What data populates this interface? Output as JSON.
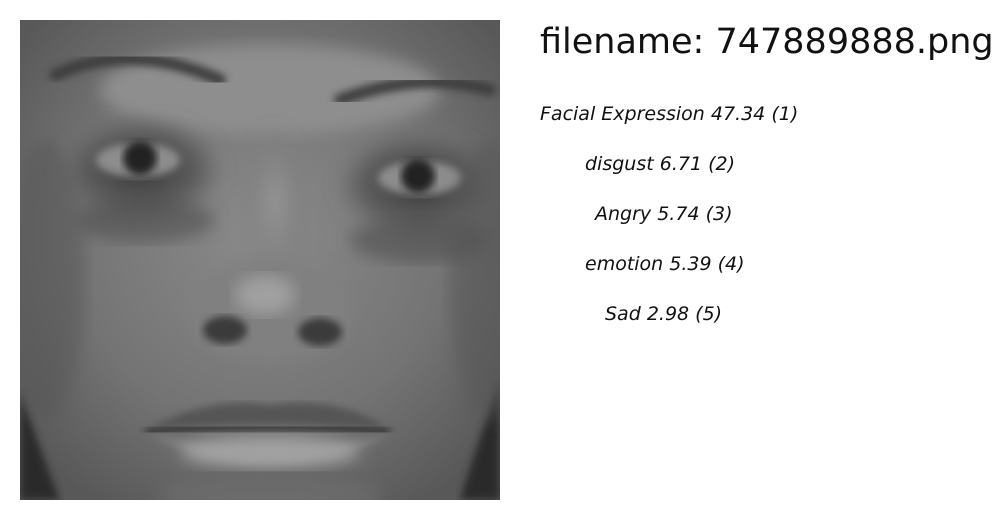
{
  "image": {
    "alt": "grayscale face photo"
  },
  "header": {
    "filename": "filename: 747889888.png"
  },
  "predictions": [
    {
      "label": "Facial Expression",
      "score": "47.34",
      "rank": "(1)"
    },
    {
      "label": "disgust",
      "score": "6.71",
      "rank": "(2)"
    },
    {
      "label": "Angry",
      "score": "5.74",
      "rank": "(3)"
    },
    {
      "label": "emotion",
      "score": "5.39",
      "rank": "(4)"
    },
    {
      "label": "Sad",
      "score": "2.98",
      "rank": "(5)"
    }
  ]
}
